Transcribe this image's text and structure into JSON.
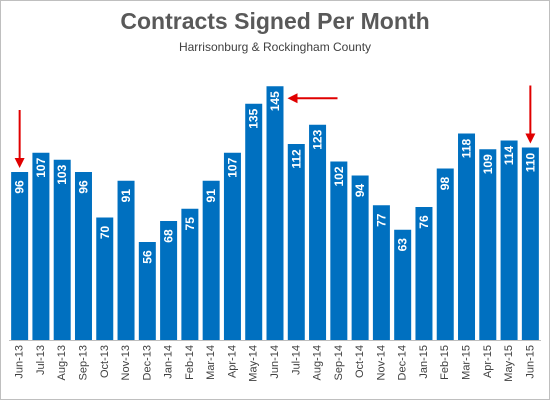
{
  "chart_data": {
    "type": "bar",
    "title": "Contracts Signed Per Month",
    "subtitle": "Harrisonburg & Rockingham County",
    "categories": [
      "Jun-13",
      "Jul-13",
      "Aug-13",
      "Sep-13",
      "Oct-13",
      "Nov-13",
      "Dec-13",
      "Jan-14",
      "Feb-14",
      "Mar-14",
      "Apr-14",
      "May-14",
      "Jun-14",
      "Jul-14",
      "Aug-14",
      "Sep-14",
      "Oct-14",
      "Nov-14",
      "Dec-14",
      "Jan-15",
      "Feb-15",
      "Mar-15",
      "Apr-15",
      "May-15",
      "Jun-15"
    ],
    "values": [
      96,
      107,
      103,
      96,
      70,
      91,
      56,
      68,
      75,
      91,
      107,
      135,
      145,
      112,
      123,
      102,
      94,
      77,
      63,
      76,
      98,
      118,
      109,
      114,
      110
    ],
    "ylim": [
      0,
      160
    ],
    "grid": false,
    "bar_color": "#0070c0",
    "annotation_color": "#e00000",
    "annotations": [
      {
        "type": "arrow-down",
        "category": "Jun-13"
      },
      {
        "type": "arrow-left",
        "category": "Jun-14"
      },
      {
        "type": "arrow-down",
        "category": "Jun-15"
      }
    ]
  }
}
